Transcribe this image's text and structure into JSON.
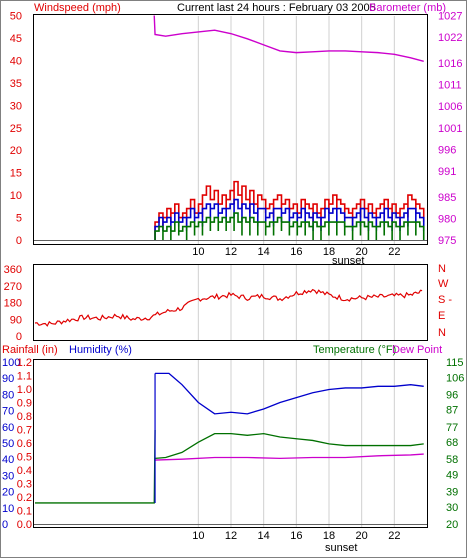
{
  "header": {
    "windspeed_label": "Windspeed (mph)",
    "center_title": "Current last 24 hours : February 03 2005",
    "barometer_label": "Barometer (mb)"
  },
  "colors": {
    "red": "#e00000",
    "blue": "#0000cc",
    "green": "#007000",
    "magenta": "#cc00cc",
    "grid": "#d0d0d0"
  },
  "chart_data": [
    {
      "type": "bar",
      "panel": "wind-barometer",
      "x_ticks": [
        "10",
        "12",
        "14",
        "16",
        "18",
        "20",
        "22"
      ],
      "x_annotation": "sunset",
      "y_left": {
        "label": "Windspeed (mph)",
        "ticks": [
          "0",
          "5",
          "10",
          "15",
          "20",
          "25",
          "30",
          "35",
          "40",
          "45",
          "50"
        ],
        "range": [
          0,
          50
        ]
      },
      "y_right": {
        "label": "Barometer (mb)",
        "ticks": [
          "975",
          "980",
          "985",
          "991",
          "996",
          "1001",
          "1006",
          "1011",
          "1016",
          "1022",
          "1027"
        ],
        "range": [
          975,
          1027
        ]
      },
      "wind_gust_max": [
        4,
        6,
        5,
        7,
        6,
        8,
        5,
        6,
        7,
        9,
        6,
        8,
        10,
        12,
        9,
        11,
        8,
        10,
        9,
        11,
        13,
        10,
        12,
        9,
        11,
        8,
        10,
        9,
        7,
        8,
        9,
        10,
        8,
        9,
        7,
        8,
        6,
        9,
        8,
        7,
        8,
        6,
        7,
        9,
        8,
        10,
        9,
        8,
        7,
        6,
        7,
        8,
        9,
        7,
        8,
        6,
        7,
        8,
        9,
        7,
        8,
        6,
        7,
        8,
        10,
        9,
        8,
        7
      ],
      "wind_avg_max": [
        3,
        5,
        4,
        5,
        4,
        6,
        4,
        5,
        5,
        7,
        5,
        6,
        7,
        8,
        7,
        8,
        6,
        7,
        7,
        8,
        9,
        7,
        8,
        7,
        8,
        6,
        7,
        7,
        5,
        6,
        7,
        7,
        6,
        7,
        5,
        6,
        5,
        7,
        6,
        5,
        6,
        5,
        5,
        7,
        6,
        7,
        7,
        6,
        5,
        5,
        5,
        6,
        7,
        5,
        6,
        5,
        5,
        6,
        7,
        5,
        6,
        5,
        5,
        6,
        7,
        7,
        6,
        5
      ],
      "wind_low_max": [
        2,
        3,
        2,
        3,
        2,
        4,
        2,
        3,
        3,
        4,
        3,
        4,
        4,
        5,
        4,
        5,
        4,
        5,
        4,
        5,
        6,
        4,
        5,
        4,
        5,
        4,
        4,
        4,
        3,
        4,
        4,
        5,
        4,
        4,
        3,
        4,
        3,
        4,
        4,
        3,
        4,
        3,
        3,
        4,
        4,
        4,
        4,
        4,
        3,
        3,
        3,
        4,
        4,
        3,
        4,
        3,
        3,
        4,
        4,
        3,
        4,
        3,
        3,
        4,
        4,
        4,
        4,
        3
      ],
      "barometer": [
        {
          "hour": 7.3,
          "mb": 1027
        },
        {
          "hour": 7.35,
          "mb": 1022.6
        },
        {
          "hour": 8,
          "mb": 1022.2
        },
        {
          "hour": 9,
          "mb": 1022.8
        },
        {
          "hour": 10,
          "mb": 1023.2
        },
        {
          "hour": 11,
          "mb": 1023.6
        },
        {
          "hour": 12,
          "mb": 1022.8
        },
        {
          "hour": 13,
          "mb": 1021.6
        },
        {
          "hour": 14,
          "mb": 1020.2
        },
        {
          "hour": 15,
          "mb": 1018.8
        },
        {
          "hour": 16,
          "mb": 1018.4
        },
        {
          "hour": 17,
          "mb": 1018.6
        },
        {
          "hour": 18,
          "mb": 1018.8
        },
        {
          "hour": 19,
          "mb": 1018.8
        },
        {
          "hour": 20,
          "mb": 1018.6
        },
        {
          "hour": 21,
          "mb": 1018.4
        },
        {
          "hour": 22,
          "mb": 1018.0
        },
        {
          "hour": 23,
          "mb": 1017.2
        },
        {
          "hour": 23.8,
          "mb": 1016.4
        }
      ]
    },
    {
      "type": "line",
      "panel": "wind-direction",
      "x_ticks": [],
      "y_left": {
        "ticks": [
          "0",
          "90",
          "180",
          "270",
          "360"
        ],
        "range": [
          0,
          360
        ]
      },
      "y_right": {
        "ticks": [
          "N",
          "E",
          "S",
          "-",
          "W",
          "N"
        ]
      },
      "series": [
        {
          "color": "#e00000",
          "points": [
            {
              "hour": 0,
              "deg": 70
            },
            {
              "hour": 1,
              "deg": 65
            },
            {
              "hour": 2,
              "deg": 85
            },
            {
              "hour": 3,
              "deg": 100
            },
            {
              "hour": 4,
              "deg": 95
            },
            {
              "hour": 5,
              "deg": 110
            },
            {
              "hour": 6,
              "deg": 90
            },
            {
              "hour": 7,
              "deg": 100
            },
            {
              "hour": 8,
              "deg": 130
            },
            {
              "hour": 9,
              "deg": 150
            },
            {
              "hour": 10,
              "deg": 200
            },
            {
              "hour": 11,
              "deg": 210
            },
            {
              "hour": 12,
              "deg": 220
            },
            {
              "hour": 13,
              "deg": 205
            },
            {
              "hour": 14,
              "deg": 215
            },
            {
              "hour": 15,
              "deg": 200
            },
            {
              "hour": 16,
              "deg": 230
            },
            {
              "hour": 17,
              "deg": 250
            },
            {
              "hour": 18,
              "deg": 220
            },
            {
              "hour": 19,
              "deg": 200
            },
            {
              "hour": 20,
              "deg": 205
            },
            {
              "hour": 21,
              "deg": 210
            },
            {
              "hour": 22,
              "deg": 215
            },
            {
              "hour": 23,
              "deg": 220
            },
            {
              "hour": 23.8,
              "deg": 240
            }
          ]
        }
      ]
    },
    {
      "type": "line",
      "panel": "humidity-temperature",
      "x_ticks": [
        "10",
        "12",
        "14",
        "16",
        "18",
        "20",
        "22"
      ],
      "x_annotation": "sunset",
      "labels": {
        "rainfall": "Rainfall (in)",
        "humidity": "Humidity (%)",
        "temperature": "Temperature (°F)",
        "dewpoint": "Dew Point"
      },
      "y_rainfall_ticks": [
        "0.0",
        "0.1",
        "0.2",
        "0.3",
        "0.4",
        "0.5",
        "0.6",
        "0.7",
        "0.8",
        "0.9",
        "1.0",
        "1.1",
        "1.2"
      ],
      "y_humidity_ticks": [
        "0",
        "10",
        "20",
        "30",
        "40",
        "50",
        "60",
        "70",
        "80",
        "90",
        "100"
      ],
      "y_temp_ticks": [
        "20",
        "30",
        "39",
        "49",
        "58",
        "68",
        "77",
        "87",
        "96",
        "106",
        "115"
      ],
      "temp_range": [
        20,
        115
      ],
      "humidity": [
        {
          "hour": 0,
          "pct": 13
        },
        {
          "hour": 7.3,
          "pct": 13
        },
        {
          "hour": 7.35,
          "pct": 93
        },
        {
          "hour": 8.2,
          "pct": 93
        },
        {
          "hour": 9,
          "pct": 86
        },
        {
          "hour": 10,
          "pct": 75
        },
        {
          "hour": 11,
          "pct": 68
        },
        {
          "hour": 12,
          "pct": 69
        },
        {
          "hour": 13,
          "pct": 68
        },
        {
          "hour": 14,
          "pct": 71
        },
        {
          "hour": 15,
          "pct": 75
        },
        {
          "hour": 16,
          "pct": 78
        },
        {
          "hour": 17,
          "pct": 81
        },
        {
          "hour": 18,
          "pct": 83
        },
        {
          "hour": 19,
          "pct": 84
        },
        {
          "hour": 20,
          "pct": 84
        },
        {
          "hour": 21,
          "pct": 85
        },
        {
          "hour": 22,
          "pct": 85
        },
        {
          "hour": 23,
          "pct": 86
        },
        {
          "hour": 23.8,
          "pct": 85
        }
      ],
      "temperature": [
        {
          "hour": 7.35,
          "f": 58.5
        },
        {
          "hour": 8,
          "f": 59
        },
        {
          "hour": 9,
          "f": 62
        },
        {
          "hour": 10,
          "f": 68
        },
        {
          "hour": 11,
          "f": 73
        },
        {
          "hour": 12,
          "f": 73
        },
        {
          "hour": 13,
          "f": 72
        },
        {
          "hour": 14,
          "f": 73
        },
        {
          "hour": 15,
          "f": 71
        },
        {
          "hour": 16,
          "f": 70
        },
        {
          "hour": 17,
          "f": 69
        },
        {
          "hour": 18,
          "f": 67
        },
        {
          "hour": 19,
          "f": 66
        },
        {
          "hour": 20,
          "f": 66
        },
        {
          "hour": 21,
          "f": 66
        },
        {
          "hour": 22,
          "f": 66
        },
        {
          "hour": 23,
          "f": 66
        },
        {
          "hour": 23.8,
          "f": 67
        }
      ],
      "dewpoint": [
        {
          "hour": 7.35,
          "f": 57.5
        },
        {
          "hour": 9,
          "f": 58
        },
        {
          "hour": 11,
          "f": 59
        },
        {
          "hour": 13,
          "f": 59
        },
        {
          "hour": 15,
          "f": 58.5
        },
        {
          "hour": 17,
          "f": 59
        },
        {
          "hour": 19,
          "f": 59
        },
        {
          "hour": 21,
          "f": 60
        },
        {
          "hour": 23,
          "f": 60.5
        },
        {
          "hour": 23.8,
          "f": 61
        }
      ]
    }
  ]
}
